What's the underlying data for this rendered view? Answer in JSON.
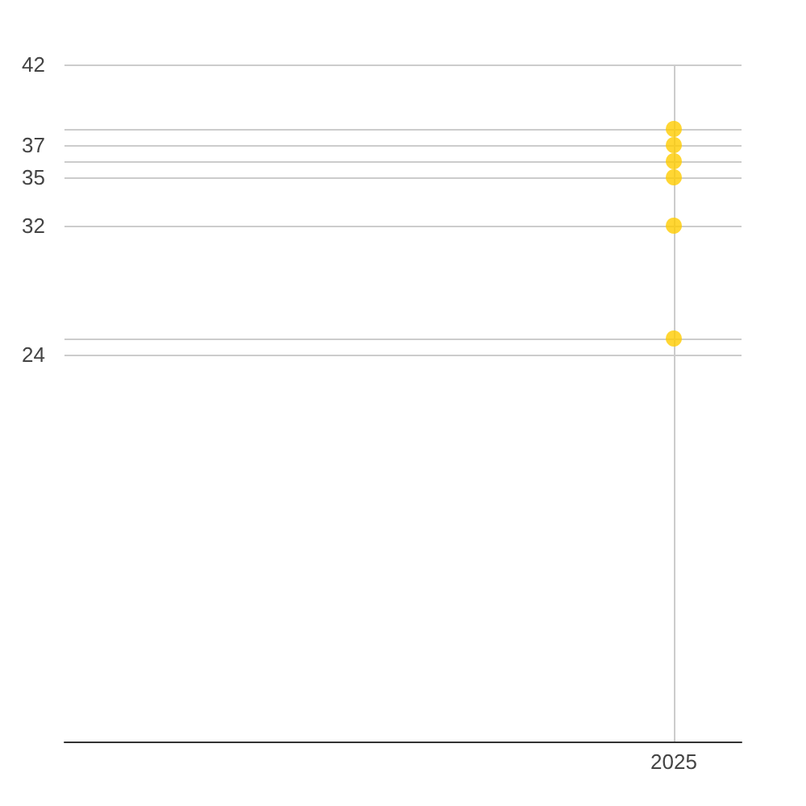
{
  "chart_data": {
    "type": "scatter",
    "categories": [
      null,
      null,
      null,
      null,
      null,
      null,
      null,
      null,
      null,
      "2025",
      null
    ],
    "series": [
      {
        "color": "#ffcc00",
        "values": [
          null,
          null,
          null,
          null,
          null,
          null,
          null,
          null,
          null,
          38,
          null
        ]
      },
      {
        "color": "#ffcc00",
        "values": [
          null,
          null,
          null,
          null,
          null,
          null,
          null,
          null,
          null,
          37,
          null
        ]
      },
      {
        "color": "#ffcc00",
        "values": [
          null,
          null,
          null,
          null,
          null,
          null,
          null,
          null,
          null,
          36,
          null
        ]
      },
      {
        "color": "#ffcc00",
        "values": [
          null,
          null,
          null,
          null,
          null,
          null,
          null,
          null,
          null,
          35,
          null
        ]
      },
      {
        "color": "#ffcc00",
        "values": [
          null,
          null,
          null,
          null,
          null,
          null,
          null,
          null,
          null,
          32,
          null
        ]
      },
      {
        "color": "#ffcc00",
        "values": [
          null,
          null,
          null,
          null,
          null,
          null,
          null,
          null,
          null,
          25,
          null
        ]
      }
    ],
    "marker": "circle",
    "ylim": [
      0,
      42
    ],
    "yticks": [
      42,
      {
        "value": 38,
        "label": null
      },
      37,
      {
        "value": 36,
        "label": null
      },
      35,
      32,
      {
        "value": 25,
        "label": null
      },
      24
    ],
    "grid": true
  }
}
